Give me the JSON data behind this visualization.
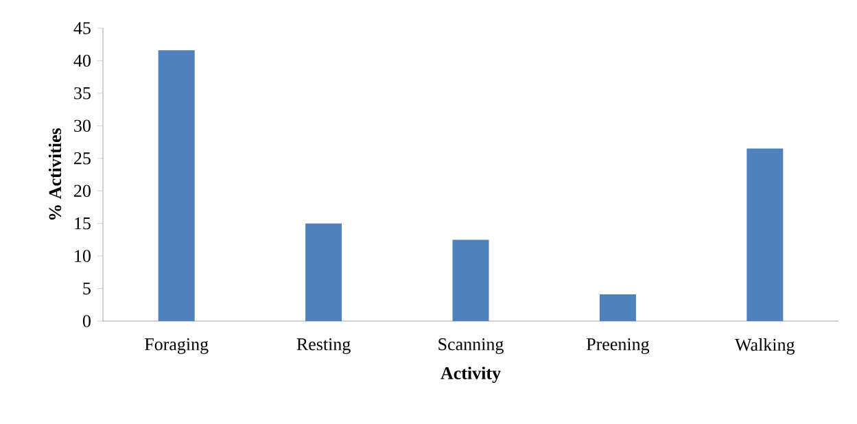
{
  "chart_data": {
    "type": "bar",
    "xlabel": "Activity",
    "ylabel": "%  Activities",
    "categories": [
      "Foraging",
      "Resting",
      "Scanning",
      "Preening",
      "Walking"
    ],
    "values": [
      41.6,
      15,
      12.5,
      4.1,
      26.5
    ],
    "color": "#4f81bd",
    "ylim": [
      0,
      45
    ],
    "yticks": [
      0,
      5,
      10,
      15,
      20,
      25,
      30,
      35,
      40,
      45
    ],
    "grid": false
  }
}
